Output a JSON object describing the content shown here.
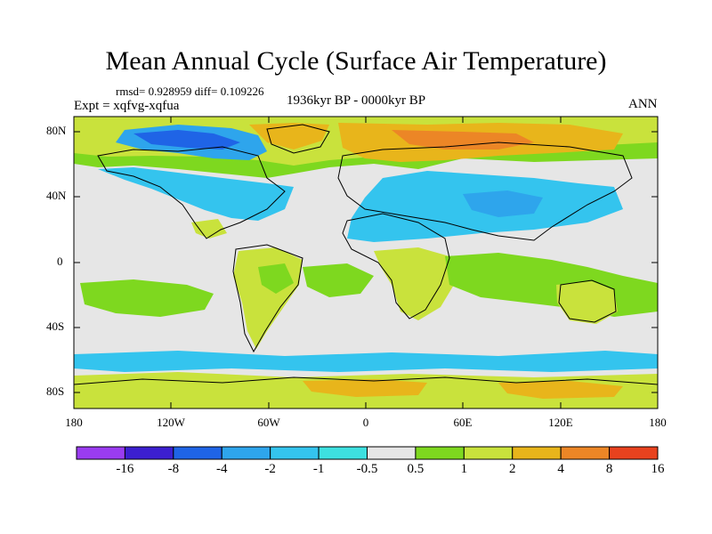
{
  "title": "Mean Annual Cycle (Surface Air Temperature)",
  "stats": "rmsd= 0.928959 diff= 0.109226",
  "experiment": "Expt = xqfvg-xqfua",
  "period": "1936kyr BP - 0000kyr BP",
  "season": "ANN",
  "axes": {
    "lat_ticks": [
      "80N",
      "40N",
      "0",
      "40S",
      "80S"
    ],
    "lon_ticks": [
      "180",
      "120W",
      "60W",
      "0",
      "60E",
      "120E",
      "180"
    ]
  },
  "colorbar": {
    "labels": [
      "-16",
      "-8",
      "-4",
      "-2",
      "-1",
      "-0.5",
      "0.5",
      "1",
      "2",
      "4",
      "8",
      "16"
    ],
    "colors": [
      "#9a3cf0",
      "#3c1fd0",
      "#1f64e6",
      "#2ea5ec",
      "#34c4ee",
      "#3de0e0",
      "#e6e6e6",
      "#7ed81f",
      "#c9e23c",
      "#e8b51b",
      "#ec8626",
      "#e8421e"
    ]
  },
  "chart_data": {
    "type": "heatmap",
    "title": "Mean Annual Cycle (Surface Air Temperature)",
    "variable": "Surface Air Temperature difference",
    "x_range": [
      -180,
      180
    ],
    "y_range": [
      -90,
      90
    ],
    "levels": [
      -16,
      -8,
      -4,
      -2,
      -1,
      -0.5,
      0.5,
      1,
      2,
      4,
      8,
      16
    ]
  }
}
